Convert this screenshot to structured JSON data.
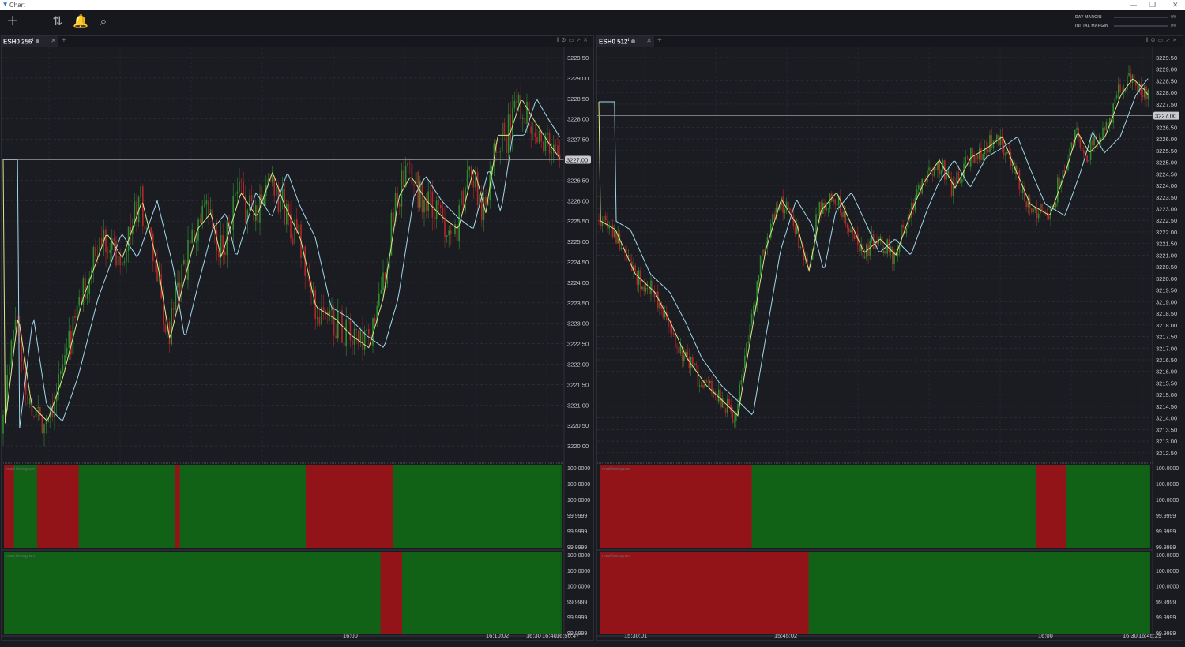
{
  "window": {
    "title": "Chart",
    "logo_icon": "app-logo-icon"
  },
  "toolbar": {
    "icons": [
      "plus-icon",
      "swap-icon",
      "bell-icon",
      "search-icon"
    ],
    "margins": [
      {
        "label": "DAY MARGIN",
        "value": "0%",
        "fraction": 0
      },
      {
        "label": "INITIAL MARGIN",
        "value": "0%",
        "fraction": 0
      }
    ]
  },
  "charts": [
    {
      "tab": "ESH0 256",
      "tab_sup": "t",
      "price_label": "3227.00",
      "price_value": 3227.0,
      "price_ticks": [
        "3229.50",
        "3229.00",
        "3228.50",
        "3228.00",
        "3227.50",
        "3226.50",
        "3226.00",
        "3225.50",
        "3225.00",
        "3224.50",
        "3224.00",
        "3223.50",
        "3223.00",
        "3222.50",
        "3222.00",
        "3221.50",
        "3221.00",
        "3220.50",
        "3220.00"
      ],
      "ind_ticks": [
        "100.0000",
        "100.0000",
        "100.0000",
        "99.9999",
        "99.9999",
        "99.9999"
      ],
      "ind_label": "mad histogram",
      "time_labels": [
        "16:00",
        "16:10:02",
        "16:30",
        "16:40",
        "16:50:47"
      ]
    },
    {
      "tab": "ESH0 512",
      "tab_sup": "t",
      "price_label": "3227.00",
      "price_value": 3227.0,
      "price_ticks": [
        "3229.50",
        "3229.00",
        "3228.50",
        "3228.00",
        "3227.50",
        "3226.50",
        "3226.00",
        "3225.50",
        "3225.00",
        "3224.50",
        "3224.00",
        "3223.50",
        "3223.00",
        "3222.50",
        "3222.00",
        "3221.50",
        "3221.00",
        "3220.50",
        "3220.00",
        "3219.50",
        "3219.00",
        "3218.50",
        "3218.00",
        "3217.50",
        "3217.00",
        "3216.50",
        "3216.00",
        "3215.50",
        "3215.00",
        "3214.50",
        "3214.00",
        "3213.50",
        "3213.00",
        "3212.50"
      ],
      "ind_ticks": [
        "100.0000",
        "100.0000",
        "100.0000",
        "99.9999",
        "99.9999",
        "99.9999"
      ],
      "ind_label": "mad histogram",
      "time_labels": [
        "15:30:01",
        "15:45:02",
        "16:00",
        "16:30",
        "16:45:29"
      ]
    }
  ],
  "colors": {
    "up": "#2e8b2e",
    "down": "#b3262a",
    "green_fill": "#0f5a15",
    "red_fill": "#8a1116",
    "fast_ma": "#d8e88a",
    "slow_ma": "#9fd8ea"
  }
}
